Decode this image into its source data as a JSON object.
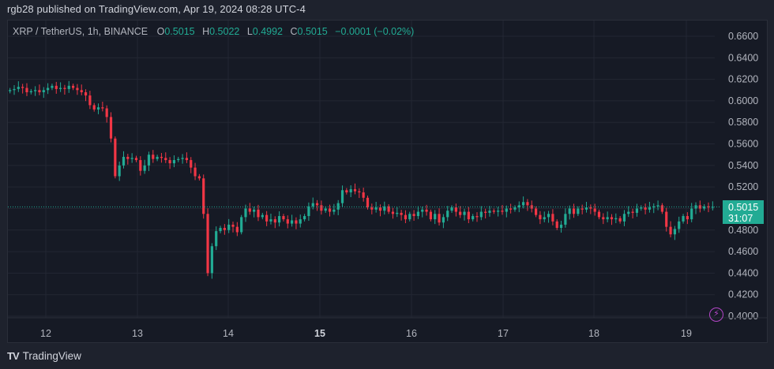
{
  "header": {
    "published": "rgb28 published on TradingView.com, Apr 19, 2024 08:28 UTC-4"
  },
  "legend": {
    "symbol": "XRP / TetherUS, 1h, BINANCE",
    "o_label": "O",
    "o": "0.5015",
    "h_label": "H",
    "h": "0.5022",
    "l_label": "L",
    "l": "0.4992",
    "c_label": "C",
    "c": "0.5015",
    "change": "−0.0001 (−0.02%)"
  },
  "price_tag": {
    "price": "0.5015",
    "countdown": "31:07"
  },
  "footer": {
    "logo": "TV",
    "brand": "TradingView"
  },
  "colors": {
    "up": "#22ab94",
    "down": "#f23645",
    "grid": "#232733",
    "last_line": "#22ab94",
    "alert": "#b446c7"
  },
  "chart_data": {
    "type": "candlestick",
    "title": "XRP / TetherUS, 1h, BINANCE",
    "xlabel": "",
    "ylabel": "",
    "ylim": [
      0.39,
      0.668
    ],
    "yticks": [
      "0.6600",
      "0.6400",
      "0.6200",
      "0.6000",
      "0.5800",
      "0.5600",
      "0.5400",
      "0.5200",
      "0.5000",
      "0.4800",
      "0.4600",
      "0.4400",
      "0.4200",
      "0.4000"
    ],
    "yvalues": [
      0.66,
      0.64,
      0.62,
      0.6,
      0.58,
      0.56,
      0.54,
      0.52,
      0.5,
      0.48,
      0.46,
      0.44,
      0.42,
      0.4
    ],
    "xticks": [
      "12",
      "13",
      "14",
      "15",
      "16",
      "17",
      "18",
      "19"
    ],
    "xtick_bold": "15",
    "last_price": 0.5015,
    "grid": true,
    "candles_close": [
      0.61,
      0.611,
      0.613,
      0.612,
      0.608,
      0.609,
      0.61,
      0.608,
      0.61,
      0.612,
      0.614,
      0.611,
      0.612,
      0.611,
      0.614,
      0.612,
      0.61,
      0.608,
      0.605,
      0.596,
      0.592,
      0.594,
      0.593,
      0.585,
      0.565,
      0.53,
      0.54,
      0.548,
      0.546,
      0.547,
      0.545,
      0.535,
      0.54,
      0.55,
      0.546,
      0.548,
      0.547,
      0.545,
      0.542,
      0.545,
      0.546,
      0.547,
      0.545,
      0.538,
      0.53,
      0.528,
      0.495,
      0.44,
      0.465,
      0.479,
      0.482,
      0.48,
      0.485,
      0.483,
      0.478,
      0.492,
      0.5,
      0.497,
      0.499,
      0.492,
      0.494,
      0.488,
      0.49,
      0.487,
      0.493,
      0.49,
      0.486,
      0.489,
      0.486,
      0.49,
      0.493,
      0.502,
      0.505,
      0.503,
      0.498,
      0.5,
      0.497,
      0.499,
      0.505,
      0.517,
      0.515,
      0.518,
      0.516,
      0.515,
      0.51,
      0.501,
      0.499,
      0.501,
      0.498,
      0.502,
      0.497,
      0.495,
      0.496,
      0.494,
      0.49,
      0.495,
      0.493,
      0.497,
      0.499,
      0.497,
      0.49,
      0.495,
      0.487,
      0.492,
      0.498,
      0.501,
      0.497,
      0.494,
      0.497,
      0.49,
      0.493,
      0.492,
      0.497,
      0.496,
      0.498,
      0.497,
      0.498,
      0.497,
      0.5,
      0.499,
      0.501,
      0.503,
      0.506,
      0.503,
      0.5,
      0.494,
      0.49,
      0.492,
      0.495,
      0.488,
      0.482,
      0.485,
      0.495,
      0.5,
      0.495,
      0.5,
      0.499,
      0.501,
      0.5,
      0.497,
      0.492,
      0.49,
      0.492,
      0.49,
      0.491,
      0.488,
      0.495,
      0.497,
      0.496,
      0.5,
      0.501,
      0.499,
      0.501,
      0.502,
      0.503,
      0.497,
      0.483,
      0.476,
      0.481,
      0.488,
      0.493,
      0.49,
      0.5,
      0.503,
      0.5,
      0.502,
      0.501,
      0.5015
    ]
  }
}
